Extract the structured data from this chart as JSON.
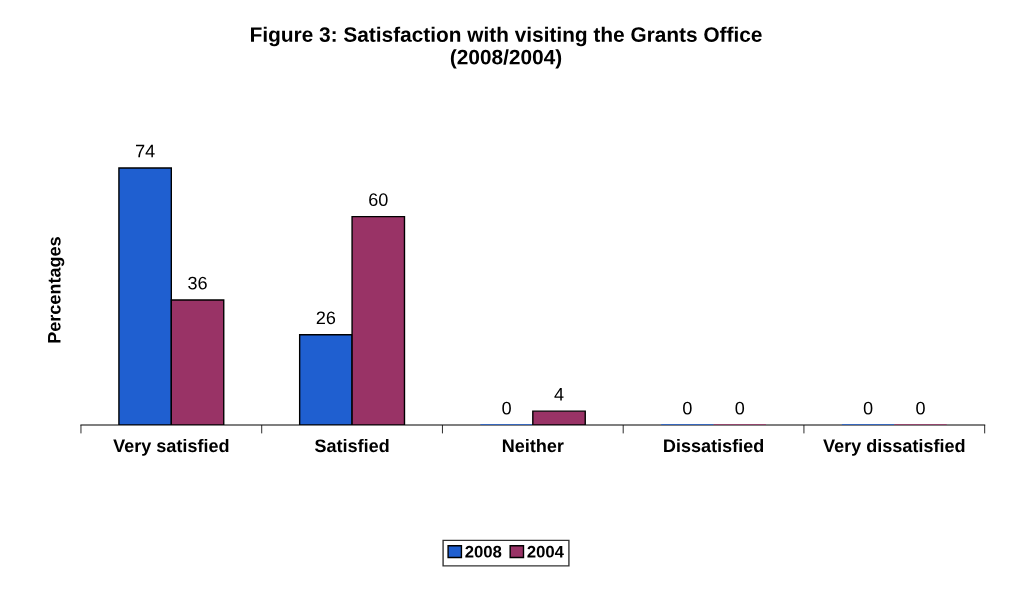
{
  "chart_data": {
    "type": "bar",
    "title": "Figure 3: Satisfaction with visiting the Grants Office\n(2008/2004)",
    "ylabel": "Percentages",
    "categories": [
      "Very satisfied",
      "Satisfied",
      "Neither",
      "Dissatisfied",
      "Very dissatisfied"
    ],
    "series": [
      {
        "name": "2008",
        "color": "#1f5fd0",
        "values": [
          74,
          26,
          0,
          0,
          0
        ]
      },
      {
        "name": "2004",
        "color": "#993366",
        "values": [
          36,
          60,
          4,
          0,
          0
        ]
      }
    ],
    "data_labels": true,
    "legend": "bottom",
    "grid": false
  }
}
